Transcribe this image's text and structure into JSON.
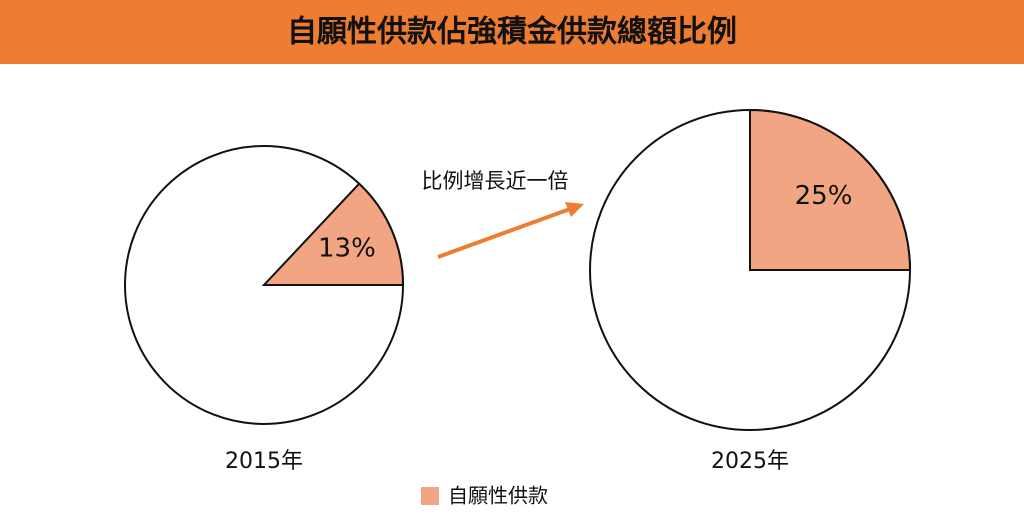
{
  "title": "自願性供款佔強積金供款總額比例",
  "annotation": "比例增長近一倍",
  "chart_data": [
    {
      "type": "pie",
      "label": "2015年",
      "categories": [
        "自願性供款"
      ],
      "values": [
        13
      ],
      "value_labels": [
        "13%"
      ],
      "color": "#f2a582"
    },
    {
      "type": "pie",
      "label": "2025年",
      "categories": [
        "自願性供款"
      ],
      "values": [
        25
      ],
      "value_labels": [
        "25%"
      ],
      "color": "#f2a582"
    }
  ]
}
